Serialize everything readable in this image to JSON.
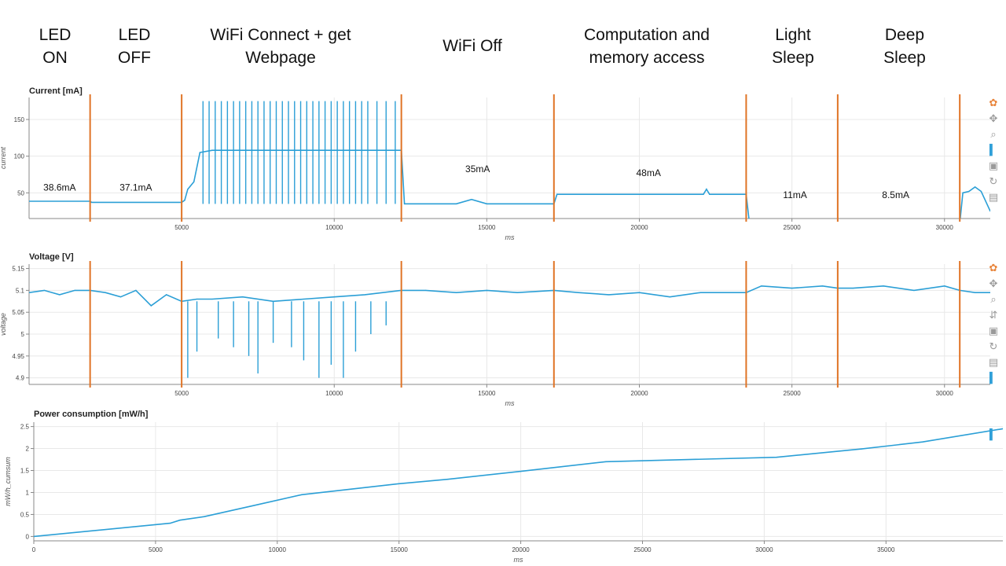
{
  "phases": [
    {
      "id": "led-on",
      "label": "LED\nON"
    },
    {
      "id": "led-off",
      "label": "LED\nOFF"
    },
    {
      "id": "wifi-connect",
      "label": "WiFi Connect + get\nWebpage"
    },
    {
      "id": "wifi-off",
      "label": "WiFi Off"
    },
    {
      "id": "computation",
      "label": "Computation and\nmemory access"
    },
    {
      "id": "light-sleep",
      "label": "Light\nSleep"
    },
    {
      "id": "deep-sleep",
      "label": "Deep\nSleep"
    }
  ],
  "toolbar_icons": [
    "bokeh-logo-icon",
    "pan-icon",
    "zoom-icon",
    "wheel-zoom-icon",
    "save-icon",
    "reset-icon",
    "hover-icon"
  ],
  "colors": {
    "series": "#2b9fd6",
    "marker": "#e07426",
    "grid": "#e8e8e8"
  },
  "chart_data": [
    {
      "type": "line",
      "title": "Current [mA]",
      "xlabel": "ms",
      "ylabel": "current",
      "xlim": [
        0,
        31500
      ],
      "ylim": [
        15,
        180
      ],
      "yticks": [
        50,
        100,
        150
      ],
      "xticks": [
        5000,
        10000,
        15000,
        20000,
        25000,
        30000
      ],
      "grid": true,
      "phase_boundaries_ms": [
        2000,
        5000,
        12200,
        17200,
        23500,
        26500,
        30500
      ],
      "x": [
        0,
        2000,
        2050,
        5000,
        5100,
        5200,
        5400,
        5600,
        6000,
        7000,
        8000,
        9000,
        10000,
        11000,
        11500,
        12200,
        12300,
        14000,
        14500,
        15000,
        17200,
        17300,
        20000,
        22100,
        22200,
        22300,
        23500,
        23600,
        26500,
        26600,
        30500,
        30600,
        30800,
        31000,
        31200,
        31500
      ],
      "values": [
        38.6,
        38.6,
        37.1,
        37.1,
        40,
        55,
        65,
        105,
        108,
        108,
        108,
        108,
        108,
        108,
        108,
        108,
        35,
        35,
        41,
        35,
        35,
        48,
        48,
        48,
        55,
        48,
        48,
        11,
        11,
        8.5,
        8.5,
        50,
        52,
        58,
        52,
        25
      ],
      "annotations": [
        {
          "text": "38.6mA",
          "x": 1000,
          "y": 53
        },
        {
          "text": "37.1mA",
          "x": 3500,
          "y": 53
        },
        {
          "text": "35mA",
          "x": 14700,
          "y": 78
        },
        {
          "text": "48mA",
          "x": 20300,
          "y": 73
        },
        {
          "text": "11mA",
          "x": 25100,
          "y": 43
        },
        {
          "text": "8.5mA",
          "x": 28400,
          "y": 43
        }
      ],
      "spikes_ms": [
        5700,
        5900,
        6100,
        6300,
        6500,
        6700,
        6900,
        7100,
        7300,
        7500,
        7700,
        7900,
        8100,
        8300,
        8500,
        8700,
        8900,
        9100,
        9300,
        9500,
        9700,
        9900,
        10100,
        10300,
        10500,
        10700,
        10900,
        11100,
        11400,
        11700,
        12000
      ],
      "spike_peak_ma": 175
    },
    {
      "type": "line",
      "title": "Voltage [V]",
      "xlabel": "ms",
      "ylabel": "voltage",
      "xlim": [
        0,
        31500
      ],
      "ylim": [
        4.885,
        5.16
      ],
      "yticks": [
        4.9,
        4.95,
        5,
        5.05,
        5.1,
        5.15
      ],
      "xticks": [
        5000,
        10000,
        15000,
        20000,
        25000,
        30000
      ],
      "grid": true,
      "phase_boundaries_ms": [
        2000,
        5000,
        12200,
        17200,
        23500,
        26500,
        30500
      ],
      "x": [
        0,
        500,
        1000,
        1500,
        2000,
        2500,
        3000,
        3500,
        4000,
        4500,
        5000,
        5500,
        6000,
        7000,
        8000,
        9000,
        10000,
        11000,
        12200,
        13000,
        14000,
        15000,
        16000,
        17200,
        18000,
        19000,
        20000,
        21000,
        22000,
        23500,
        24000,
        25000,
        26000,
        26500,
        27000,
        28000,
        29000,
        30000,
        30500,
        31000,
        31500
      ],
      "values": [
        5.095,
        5.1,
        5.09,
        5.1,
        5.1,
        5.095,
        5.085,
        5.1,
        5.065,
        5.09,
        5.075,
        5.08,
        5.08,
        5.085,
        5.075,
        5.08,
        5.085,
        5.09,
        5.1,
        5.1,
        5.095,
        5.1,
        5.095,
        5.1,
        5.095,
        5.09,
        5.095,
        5.085,
        5.095,
        5.095,
        5.11,
        5.105,
        5.11,
        5.105,
        5.105,
        5.11,
        5.1,
        5.11,
        5.1,
        5.095,
        5.095
      ],
      "dips": [
        {
          "x": 5200,
          "y": 4.9
        },
        {
          "x": 5500,
          "y": 4.96
        },
        {
          "x": 6200,
          "y": 4.99
        },
        {
          "x": 6700,
          "y": 4.97
        },
        {
          "x": 7200,
          "y": 4.95
        },
        {
          "x": 7500,
          "y": 4.91
        },
        {
          "x": 8000,
          "y": 4.98
        },
        {
          "x": 8600,
          "y": 4.97
        },
        {
          "x": 9000,
          "y": 4.94
        },
        {
          "x": 9500,
          "y": 4.9
        },
        {
          "x": 9900,
          "y": 4.93
        },
        {
          "x": 10300,
          "y": 4.9
        },
        {
          "x": 10700,
          "y": 4.96
        },
        {
          "x": 11200,
          "y": 5.0
        },
        {
          "x": 11700,
          "y": 5.02
        }
      ]
    },
    {
      "type": "line",
      "title": "Power consumption [mW/h]",
      "xlabel": "ms",
      "ylabel": "mW/h_cumsum",
      "xlim": [
        0,
        39800
      ],
      "ylim": [
        -0.1,
        2.6
      ],
      "yticks": [
        0,
        0.5,
        1,
        1.5,
        2,
        2.5
      ],
      "xticks": [
        0,
        5000,
        10000,
        15000,
        20000,
        25000,
        30000,
        35000
      ],
      "grid": true,
      "x": [
        0,
        5600,
        6000,
        7000,
        9000,
        11000,
        15000,
        17000,
        20000,
        23500,
        30500,
        34000,
        36500,
        39800
      ],
      "values": [
        0,
        0.3,
        0.37,
        0.45,
        0.7,
        0.95,
        1.2,
        1.3,
        1.48,
        1.7,
        1.8,
        1.99,
        2.15,
        2.45
      ]
    }
  ]
}
